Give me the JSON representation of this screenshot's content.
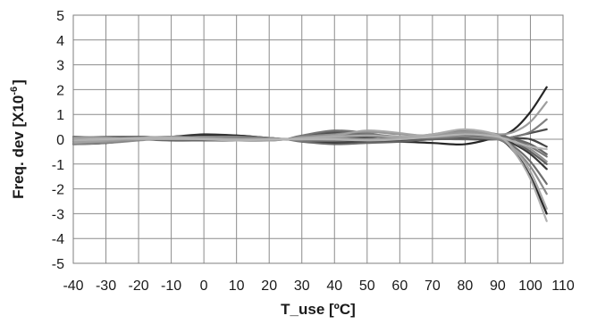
{
  "chart_data": {
    "type": "line",
    "title": "",
    "xlabel": "T_use [ºC]",
    "ylabel": "Freq. dev [X10",
    "ylabel_exponent": "-6",
    "ylabel_close": "]",
    "xlim": [
      -40,
      110
    ],
    "ylim": [
      -5,
      5
    ],
    "x_ticks": [
      -40,
      -30,
      -20,
      -10,
      0,
      10,
      20,
      30,
      40,
      50,
      60,
      70,
      80,
      90,
      100,
      110
    ],
    "y_ticks": [
      -5,
      -4,
      -3,
      -2,
      -1,
      0,
      1,
      2,
      3,
      4,
      5
    ],
    "x_tick_labels": [
      "-40",
      "-30",
      "-20",
      "-10",
      "0",
      "10",
      "20",
      "30",
      "40",
      "50",
      "60",
      "70",
      "80",
      "90",
      "100",
      "110"
    ],
    "y_tick_labels": [
      "-5",
      "-4",
      "-3",
      "-2",
      "-1",
      "0",
      "1",
      "2",
      "3",
      "4",
      "5"
    ],
    "grid": true,
    "legend": "none",
    "x": [
      -40,
      -30,
      -20,
      -10,
      0,
      10,
      20,
      25,
      30,
      40,
      50,
      60,
      70,
      80,
      90,
      95,
      100,
      105
    ],
    "series": [
      {
        "color": "#1a1a1a",
        "values": [
          -0.1,
          -0.15,
          0.0,
          0.1,
          0.15,
          0.15,
          0.05,
          0.0,
          -0.05,
          -0.15,
          -0.1,
          -0.1,
          -0.15,
          -0.2,
          0.1,
          0.4,
          1.1,
          2.1
        ]
      },
      {
        "color": "#1a1a1a",
        "values": [
          -0.05,
          0.0,
          0.05,
          0.05,
          0.05,
          0.0,
          0.0,
          0.0,
          0.05,
          0.1,
          0.0,
          0.0,
          0.0,
          0.05,
          0.0,
          -0.5,
          -1.5,
          -3.0
        ]
      },
      {
        "color": "#2e2e2e",
        "values": [
          -0.2,
          -0.15,
          0.05,
          0.1,
          0.2,
          0.15,
          0.05,
          0.0,
          0.0,
          0.1,
          0.05,
          -0.05,
          0.0,
          0.1,
          0.05,
          -0.2,
          -0.6,
          -1.2
        ]
      },
      {
        "color": "#3a3a3a",
        "values": [
          0.0,
          0.05,
          0.1,
          0.05,
          0.0,
          0.0,
          0.0,
          0.0,
          0.1,
          0.25,
          0.15,
          0.05,
          0.15,
          0.25,
          0.1,
          0.05,
          0.0,
          -0.3
        ]
      },
      {
        "color": "#444444",
        "values": [
          -0.15,
          -0.1,
          0.0,
          0.05,
          0.1,
          0.05,
          0.0,
          0.0,
          -0.05,
          -0.1,
          -0.1,
          0.0,
          0.05,
          0.0,
          0.0,
          0.1,
          0.25,
          0.4
        ]
      },
      {
        "color": "#555555",
        "values": [
          0.1,
          0.05,
          0.0,
          -0.05,
          -0.05,
          -0.05,
          0.0,
          0.0,
          0.1,
          0.3,
          0.2,
          0.0,
          0.1,
          0.3,
          0.15,
          -0.1,
          -0.5,
          -1.0
        ]
      },
      {
        "color": "#5e5e5e",
        "values": [
          -0.05,
          -0.05,
          0.0,
          0.05,
          0.1,
          0.1,
          0.05,
          0.0,
          0.0,
          0.05,
          0.1,
          0.1,
          0.1,
          0.15,
          0.05,
          0.0,
          -0.2,
          -0.6
        ]
      },
      {
        "color": "#666666",
        "values": [
          -0.2,
          -0.1,
          0.05,
          0.1,
          0.05,
          0.0,
          0.0,
          0.0,
          -0.1,
          -0.2,
          -0.15,
          -0.1,
          0.0,
          0.0,
          0.05,
          -0.3,
          -0.9,
          -1.8
        ]
      },
      {
        "color": "#707070",
        "values": [
          0.05,
          0.1,
          0.1,
          0.05,
          0.0,
          -0.05,
          -0.05,
          0.0,
          0.15,
          0.35,
          0.25,
          0.05,
          0.2,
          0.35,
          0.2,
          0.0,
          -0.3,
          -0.7
        ]
      },
      {
        "color": "#7a7a7a",
        "values": [
          -0.1,
          -0.05,
          0.0,
          0.05,
          0.1,
          0.05,
          0.0,
          0.0,
          0.05,
          0.15,
          0.2,
          0.1,
          0.05,
          0.1,
          0.0,
          0.1,
          0.3,
          0.8
        ]
      },
      {
        "color": "#858585",
        "values": [
          -0.2,
          -0.15,
          -0.05,
          0.05,
          0.1,
          0.1,
          0.05,
          0.0,
          -0.05,
          -0.05,
          0.0,
          0.05,
          0.1,
          0.1,
          0.0,
          -0.4,
          -1.1,
          -2.2
        ]
      },
      {
        "color": "#8e8e8e",
        "values": [
          0.0,
          0.0,
          0.05,
          0.05,
          0.05,
          0.0,
          0.0,
          0.0,
          0.1,
          0.2,
          0.3,
          0.2,
          0.15,
          0.25,
          0.05,
          -0.1,
          -0.4,
          -0.9
        ]
      },
      {
        "color": "#999999",
        "values": [
          -0.1,
          -0.1,
          0.0,
          0.05,
          0.05,
          0.0,
          0.0,
          0.0,
          0.0,
          0.05,
          0.0,
          0.05,
          0.15,
          0.3,
          0.2,
          0.3,
          0.7,
          1.5
        ]
      },
      {
        "color": "#a3a3a3",
        "values": [
          -0.15,
          -0.05,
          0.05,
          0.1,
          0.05,
          0.0,
          -0.05,
          0.0,
          0.05,
          0.15,
          0.35,
          0.25,
          0.1,
          0.2,
          0.1,
          -0.4,
          -1.3,
          -2.8
        ]
      },
      {
        "color": "#adadad",
        "values": [
          0.05,
          0.05,
          0.0,
          0.0,
          0.0,
          0.0,
          0.0,
          0.0,
          0.05,
          0.1,
          0.15,
          0.1,
          0.2,
          0.4,
          0.15,
          -0.5,
          -1.6,
          -3.3
        ]
      },
      {
        "color": "#b5b5b5",
        "values": [
          -0.05,
          0.0,
          0.05,
          0.05,
          0.0,
          -0.05,
          0.0,
          0.0,
          0.0,
          0.0,
          -0.05,
          0.0,
          0.1,
          0.2,
          0.1,
          -0.1,
          -0.3,
          -0.4
        ]
      }
    ]
  }
}
